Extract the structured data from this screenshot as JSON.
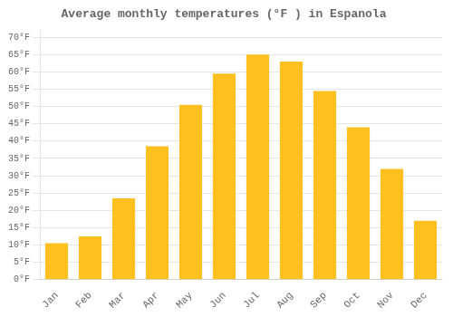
{
  "chart_data": {
    "type": "bar",
    "title": "Average monthly temperatures (°F ) in Espanola",
    "categories": [
      "Jan",
      "Feb",
      "Mar",
      "Apr",
      "May",
      "Jun",
      "Jul",
      "Aug",
      "Sep",
      "Oct",
      "Nov",
      "Dec"
    ],
    "values": [
      10.5,
      12.5,
      23.5,
      38.5,
      50.5,
      59.5,
      65.0,
      63.0,
      54.5,
      44.0,
      32.0,
      17.0
    ],
    "color": "#FFC020",
    "ylim": [
      0,
      72
    ],
    "yticks": [
      {
        "value": 0,
        "label": "0°F"
      },
      {
        "value": 5,
        "label": "5°F"
      },
      {
        "value": 10,
        "label": "10°F"
      },
      {
        "value": 15,
        "label": "15°F"
      },
      {
        "value": 20,
        "label": "20°F"
      },
      {
        "value": 25,
        "label": "25°F"
      },
      {
        "value": 30,
        "label": "30°F"
      },
      {
        "value": 35,
        "label": "35°F"
      },
      {
        "value": 40,
        "label": "40°F"
      },
      {
        "value": 45,
        "label": "45°F"
      },
      {
        "value": 50,
        "label": "50°F"
      },
      {
        "value": 55,
        "label": "55°F"
      },
      {
        "value": 60,
        "label": "60°F"
      },
      {
        "value": 65,
        "label": "65°F"
      },
      {
        "value": 70,
        "label": "70°F"
      }
    ],
    "grid": true
  }
}
